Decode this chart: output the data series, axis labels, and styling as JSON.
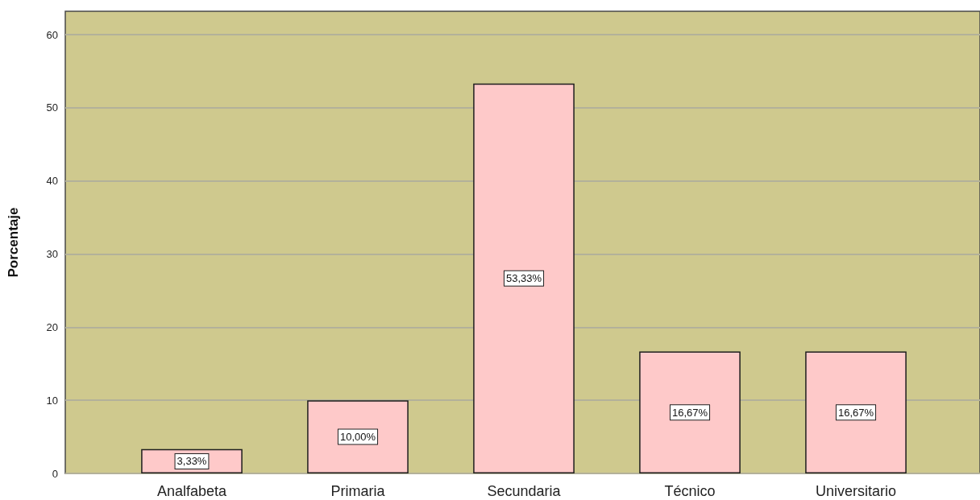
{
  "chart_data": {
    "type": "bar",
    "ylabel": "Porcentaje",
    "categories": [
      "Analfabeta",
      "Primaria",
      "Secundaria",
      "Técnico",
      "Universitario"
    ],
    "values": [
      3.33,
      10.0,
      53.33,
      16.67,
      16.67
    ],
    "value_labels": [
      "3,33%",
      "10,00%",
      "53,33%",
      "16,67%",
      "16,67%"
    ],
    "color": "#fec9c9",
    "ylim": [
      0,
      63.2
    ],
    "yticks": [
      0,
      10,
      20,
      30,
      40,
      50,
      60
    ],
    "grid": "y"
  }
}
